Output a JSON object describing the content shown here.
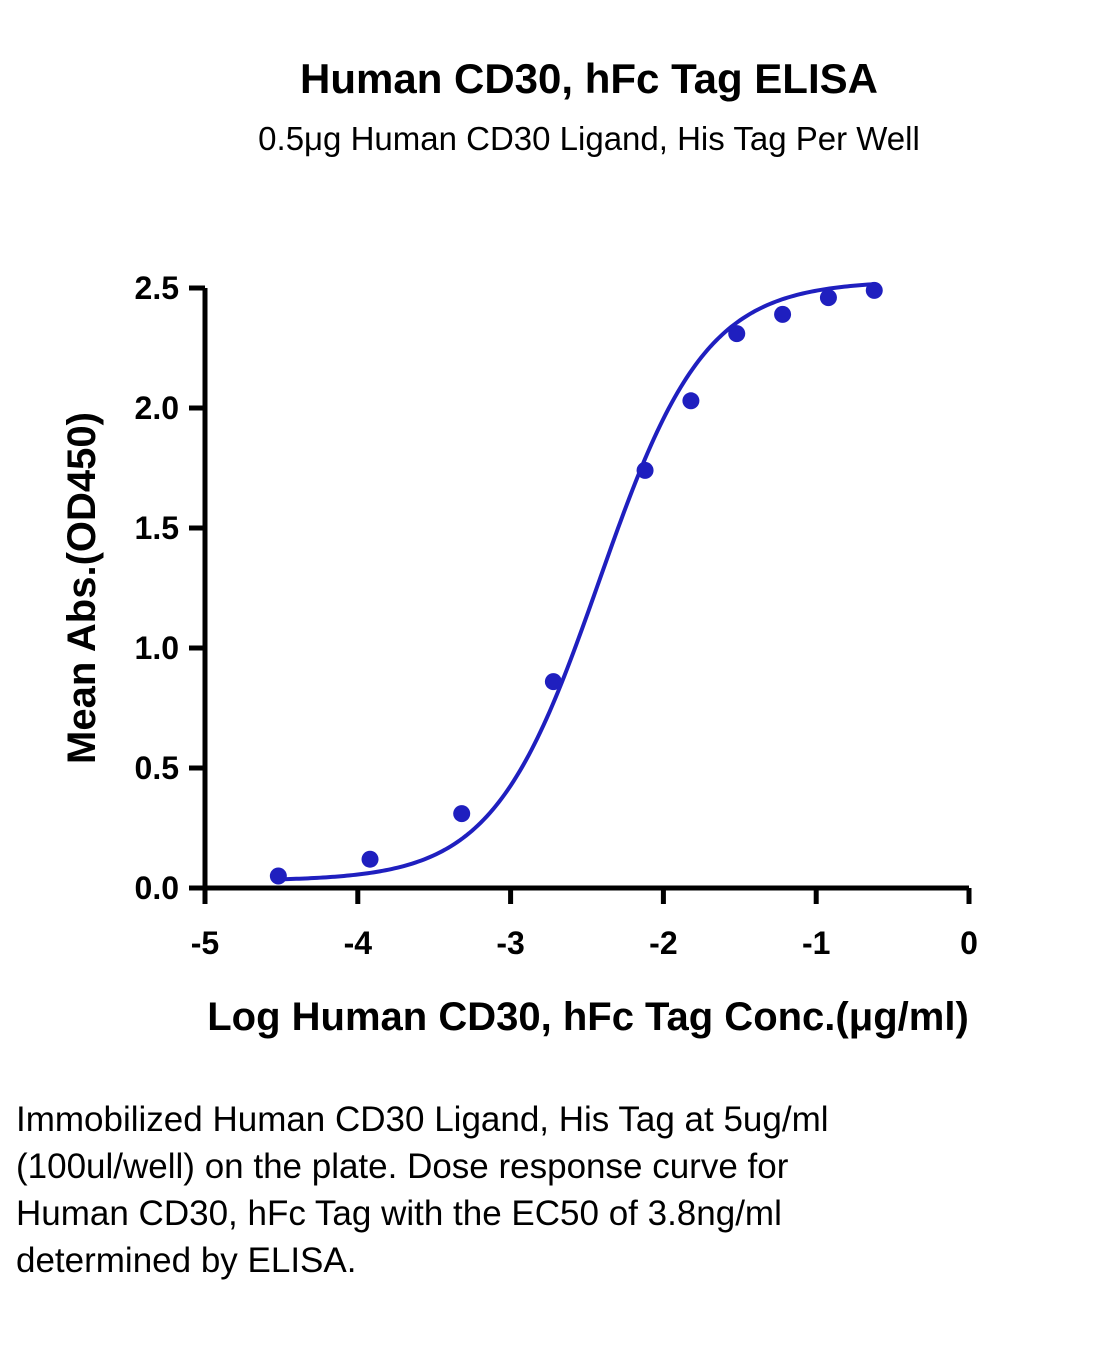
{
  "chart_data": {
    "type": "scatter",
    "title": "Human CD30, hFc Tag ELISA",
    "subtitle": "0.5μg Human CD30 Ligand, His Tag Per Well",
    "xlabel": "Log Human CD30, hFc Tag Conc.(μg/ml)",
    "ylabel": "Mean Abs.(OD450)",
    "xlim": [
      -5,
      0
    ],
    "ylim": [
      0,
      2.5
    ],
    "x_ticks": [
      -5,
      -4,
      -3,
      -2,
      -1,
      0
    ],
    "y_ticks": [
      0.0,
      0.5,
      1.0,
      1.5,
      2.0,
      2.5
    ],
    "x_tick_labels": [
      "-5",
      "-4",
      "-3",
      "-2",
      "-1",
      "0"
    ],
    "y_tick_labels": [
      "0.0",
      "0.5",
      "1.0",
      "1.5",
      "2.0",
      "2.5"
    ],
    "grid": false,
    "legend": "none",
    "series": [
      {
        "x": [
          -4.52,
          -3.92,
          -3.32,
          -2.72,
          -2.12,
          -1.82,
          -1.52,
          -1.22,
          -0.92,
          -0.62
        ],
        "y": [
          0.05,
          0.12,
          0.31,
          0.86,
          1.74,
          2.03,
          2.31,
          2.39,
          2.46,
          2.49
        ],
        "color": "#1f1fbf",
        "fit": {
          "model": "4PL",
          "bottom": 0.03,
          "top": 2.53,
          "log_ec50": -2.42,
          "hill": 1.25
        }
      }
    ]
  },
  "caption": {
    "text": "Immobilized Human CD30 Ligand, His Tag at 5ug/ml (100ul/well) on the plate. Dose response curve for Human CD30, hFc Tag with the EC50 of 3.8ng/ml determined by ELISA."
  }
}
